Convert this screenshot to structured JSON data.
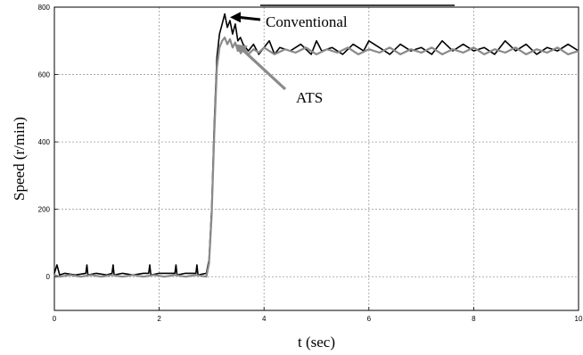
{
  "chart_data": {
    "type": "line",
    "title": "",
    "xlabel": "t (sec)",
    "ylabel": "Speed (r/min)",
    "xlim": [
      0,
      10
    ],
    "ylim": [
      -100,
      800
    ],
    "grid": true,
    "x_ticks": [
      0,
      2,
      4,
      6,
      8,
      10
    ],
    "x_tick_labels": [
      "0",
      "2",
      "4",
      "6",
      "8",
      "10"
    ],
    "y_ticks": [
      0,
      200,
      400,
      600,
      800
    ],
    "y_tick_labels": [
      "0",
      "200",
      "400",
      "600",
      "800"
    ],
    "annotations": [
      {
        "text": "Conventional",
        "series": "Conventional",
        "x": 3.35,
        "y": 770
      },
      {
        "text": "ATS",
        "series": "ATS",
        "x": 3.45,
        "y": 690
      }
    ],
    "series": [
      {
        "name": "Conventional",
        "color": "#000000",
        "x": [
          0,
          0.05,
          0.1,
          0.2,
          0.4,
          0.6,
          0.62,
          0.64,
          0.8,
          1.0,
          1.1,
          1.12,
          1.14,
          1.3,
          1.5,
          1.7,
          1.8,
          1.82,
          1.84,
          2.0,
          2.3,
          2.32,
          2.34,
          2.5,
          2.7,
          2.72,
          2.74,
          2.9,
          2.95,
          3.0,
          3.05,
          3.1,
          3.15,
          3.2,
          3.25,
          3.3,
          3.35,
          3.4,
          3.45,
          3.5,
          3.55,
          3.6,
          3.7,
          3.8,
          3.9,
          4.0,
          4.1,
          4.2,
          4.3,
          4.5,
          4.7,
          4.9,
          5.0,
          5.1,
          5.3,
          5.5,
          5.7,
          5.9,
          6.0,
          6.2,
          6.4,
          6.6,
          6.8,
          7.0,
          7.2,
          7.4,
          7.6,
          7.8,
          8.0,
          8.2,
          8.4,
          8.6,
          8.8,
          9.0,
          9.2,
          9.4,
          9.6,
          9.8,
          10.0
        ],
        "values": [
          10,
          35,
          5,
          10,
          5,
          10,
          35,
          5,
          10,
          5,
          10,
          35,
          5,
          10,
          5,
          10,
          10,
          35,
          5,
          10,
          10,
          35,
          5,
          10,
          10,
          35,
          5,
          10,
          50,
          200,
          450,
          650,
          720,
          750,
          780,
          740,
          760,
          720,
          750,
          700,
          710,
          690,
          670,
          690,
          660,
          680,
          700,
          660,
          680,
          670,
          690,
          660,
          700,
          670,
          680,
          660,
          690,
          670,
          700,
          680,
          660,
          690,
          670,
          680,
          660,
          700,
          670,
          690,
          670,
          680,
          660,
          700,
          670,
          690,
          660,
          680,
          670,
          690,
          670
        ]
      },
      {
        "name": "ATS",
        "color": "#8a8a8a",
        "x": [
          0,
          0.1,
          0.3,
          0.5,
          0.7,
          0.9,
          1.1,
          1.3,
          1.5,
          1.7,
          1.9,
          2.1,
          2.3,
          2.5,
          2.7,
          2.9,
          2.95,
          3.0,
          3.05,
          3.1,
          3.15,
          3.2,
          3.25,
          3.3,
          3.35,
          3.4,
          3.45,
          3.5,
          3.6,
          3.7,
          3.8,
          3.9,
          4.0,
          4.2,
          4.4,
          4.6,
          4.8,
          5.0,
          5.2,
          5.4,
          5.6,
          5.8,
          6.0,
          6.2,
          6.4,
          6.6,
          6.8,
          7.0,
          7.2,
          7.4,
          7.6,
          7.8,
          8.0,
          8.2,
          8.4,
          8.6,
          8.8,
          9.0,
          9.2,
          9.4,
          9.6,
          9.8,
          10.0
        ],
        "values": [
          5,
          0,
          5,
          0,
          5,
          0,
          5,
          0,
          5,
          0,
          5,
          0,
          5,
          0,
          5,
          0,
          40,
          180,
          420,
          620,
          680,
          700,
          710,
          690,
          705,
          680,
          695,
          670,
          680,
          660,
          675,
          665,
          680,
          660,
          675,
          665,
          680,
          660,
          675,
          665,
          680,
          660,
          675,
          665,
          680,
          660,
          675,
          665,
          680,
          660,
          675,
          665,
          680,
          660,
          675,
          665,
          680,
          660,
          675,
          665,
          680,
          660,
          670
        ]
      }
    ]
  }
}
